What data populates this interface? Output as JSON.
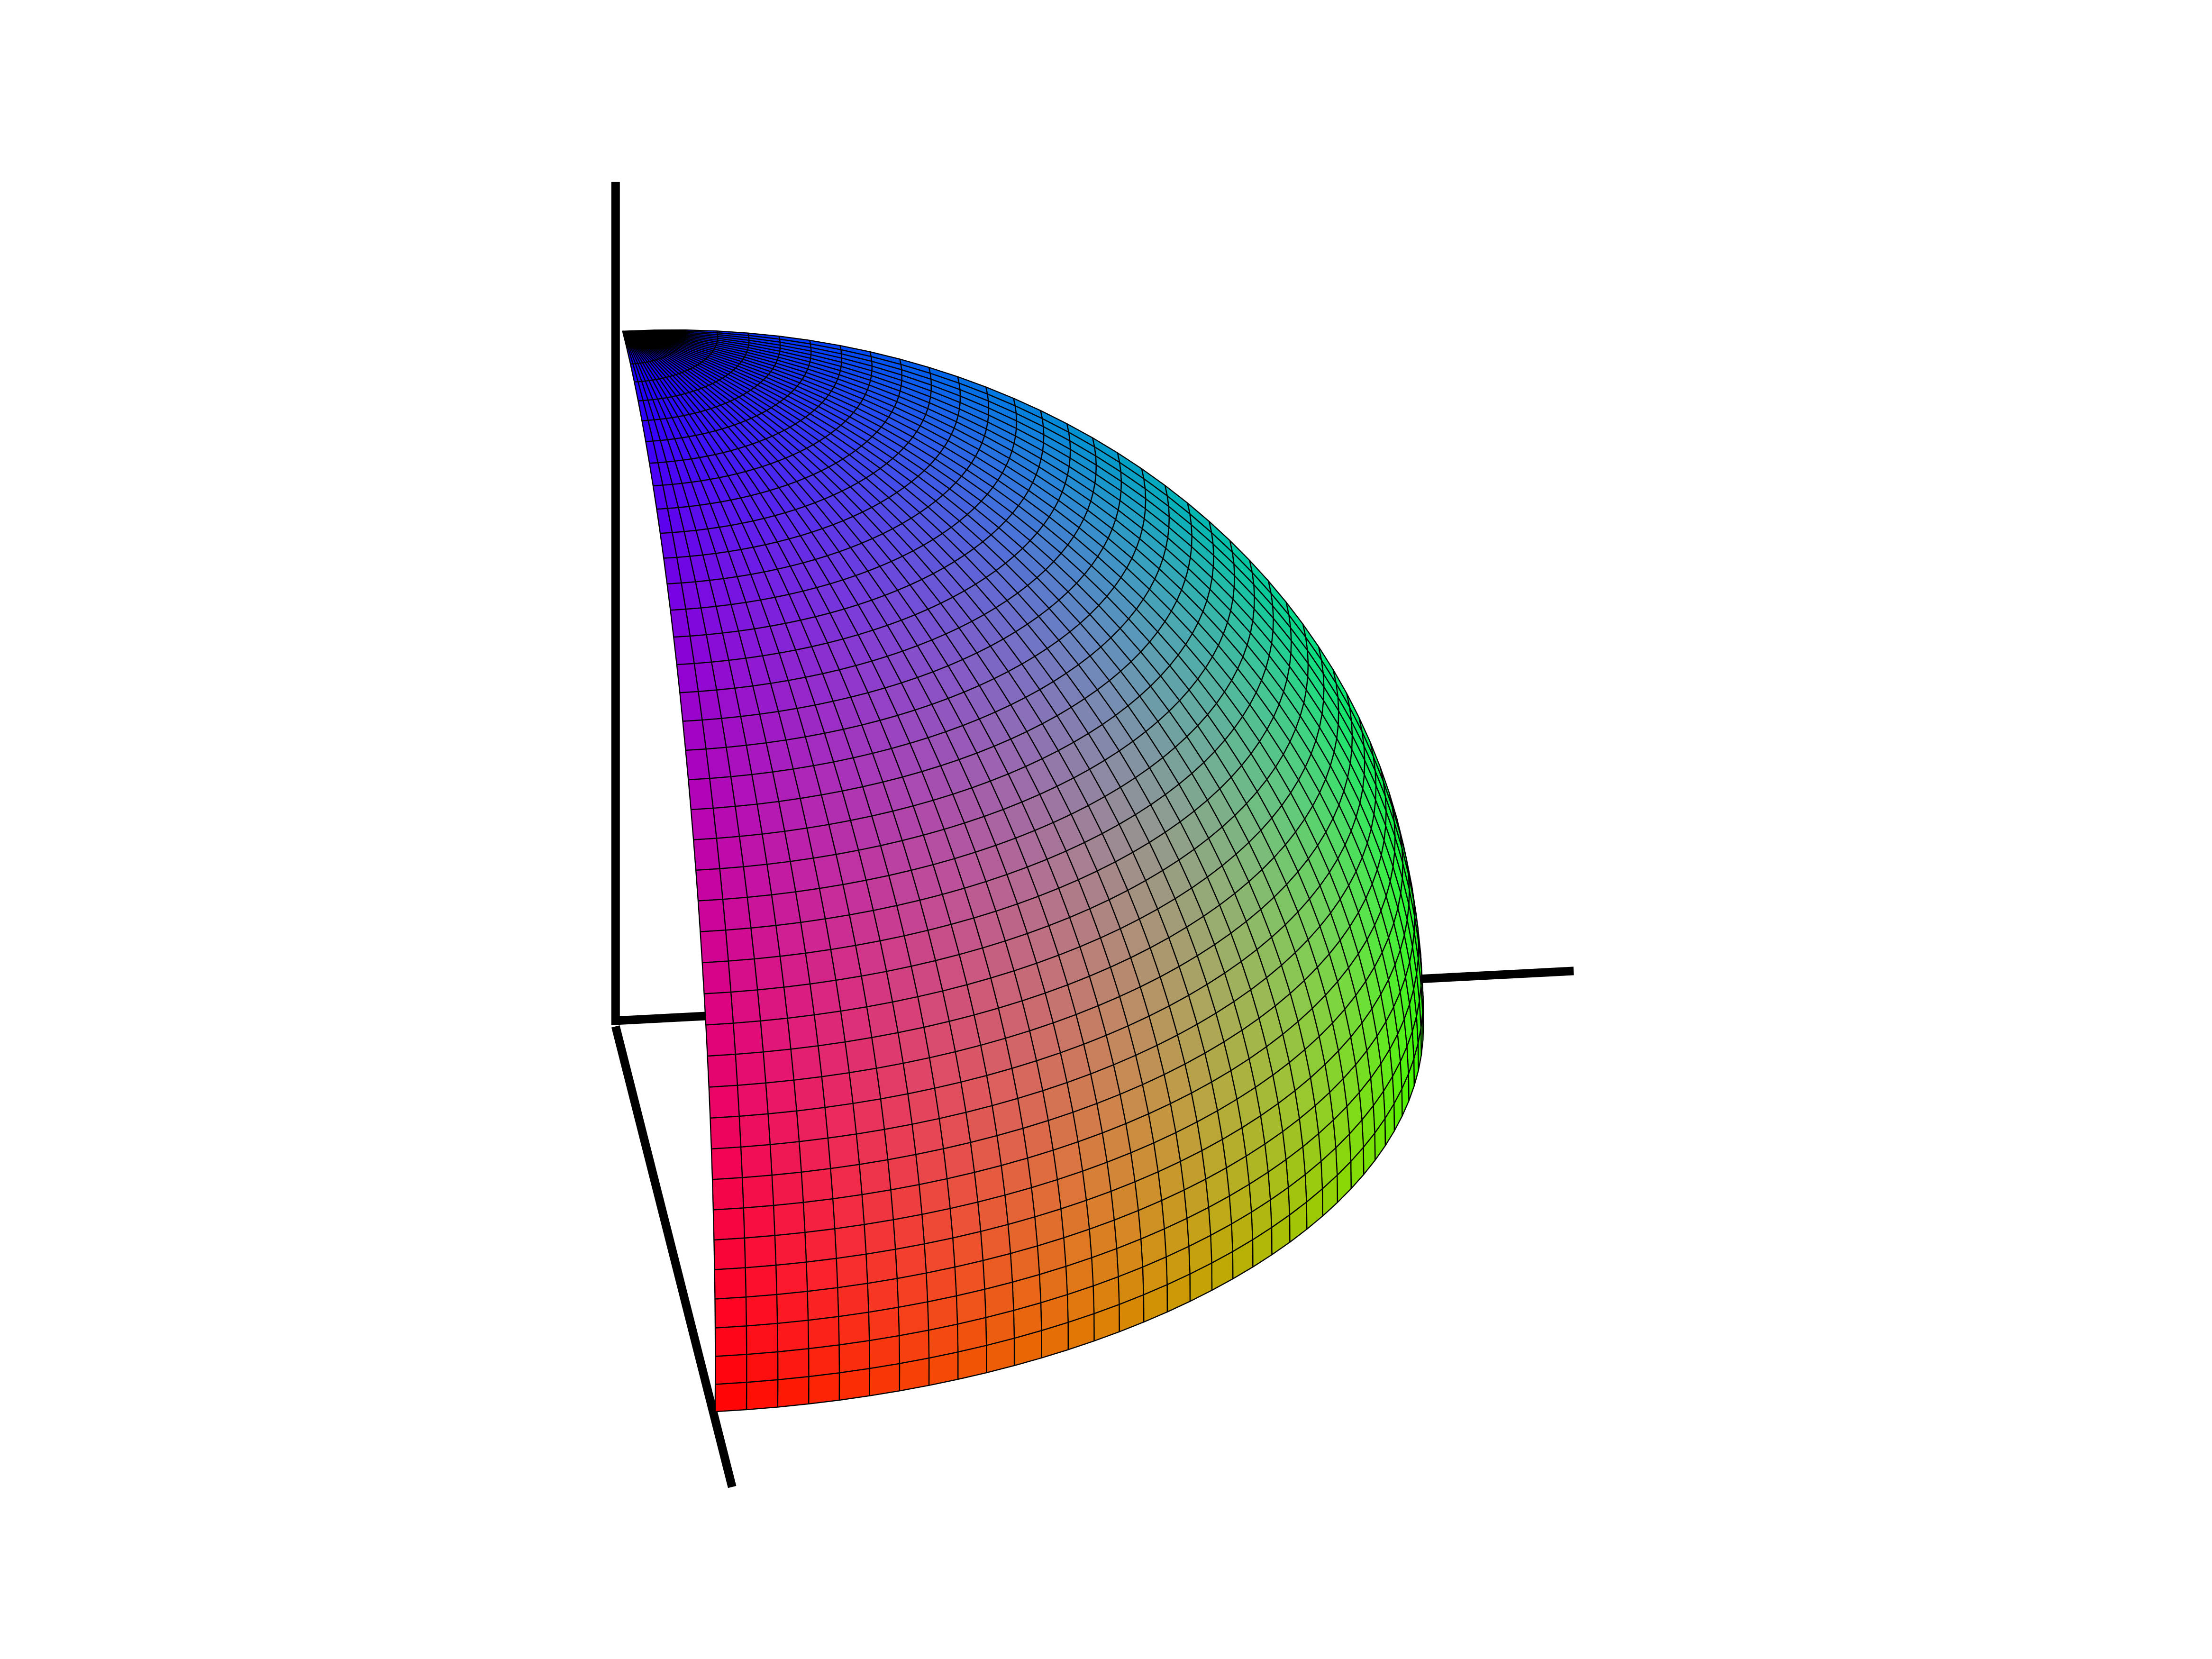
{
  "chart_data": {
    "type": "surface"
  }
}
